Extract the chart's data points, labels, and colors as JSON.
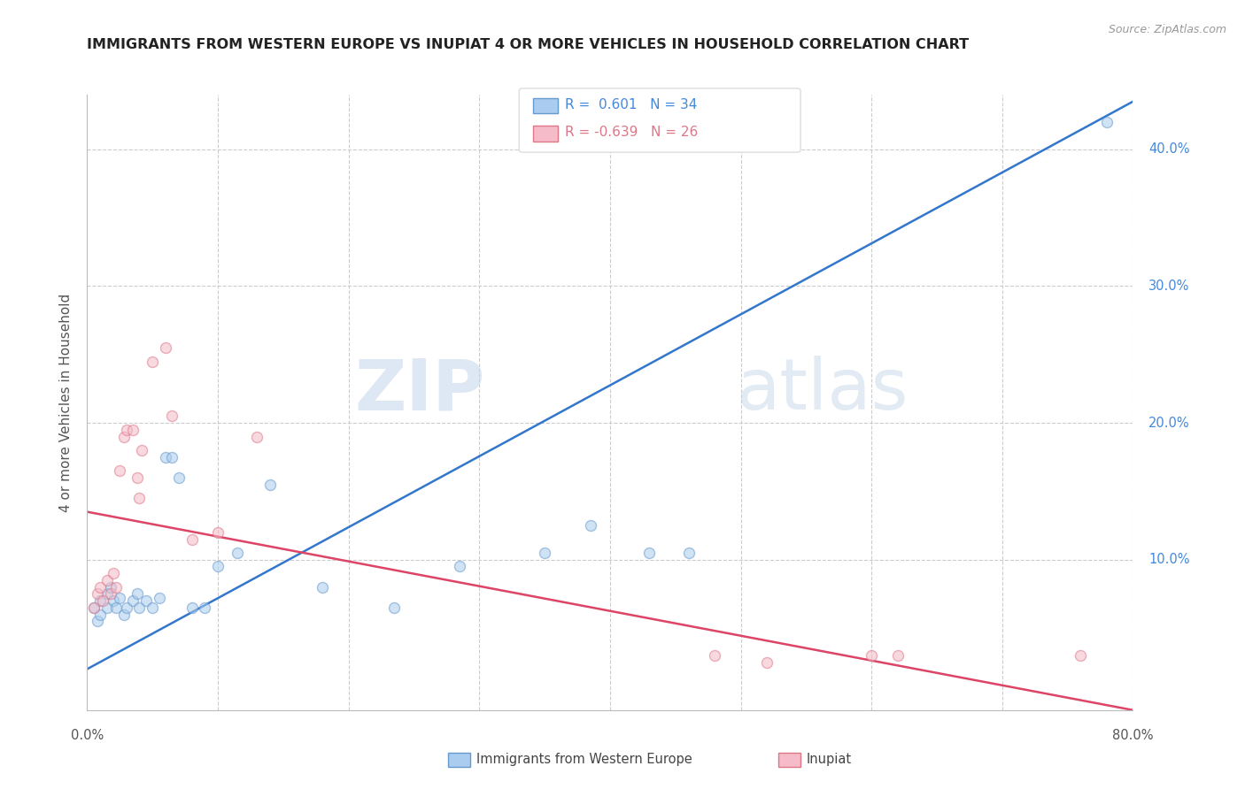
{
  "title": "IMMIGRANTS FROM WESTERN EUROPE VS INUPIAT 4 OR MORE VEHICLES IN HOUSEHOLD CORRELATION CHART",
  "source": "Source: ZipAtlas.com",
  "ylabel": "4 or more Vehicles in Household",
  "watermark_zip": "ZIP",
  "watermark_atlas": "atlas",
  "legend_blue_label": "Immigrants from Western Europe",
  "legend_pink_label": "Inupiat",
  "R_blue": 0.601,
  "N_blue": 34,
  "R_pink": -0.639,
  "N_pink": 26,
  "xlim": [
    0.0,
    0.8
  ],
  "ylim": [
    -0.01,
    0.44
  ],
  "xticks": [
    0.0,
    0.1,
    0.2,
    0.3,
    0.4,
    0.5,
    0.6,
    0.7,
    0.8
  ],
  "yticks": [
    0.0,
    0.1,
    0.2,
    0.3,
    0.4
  ],
  "blue_scatter": [
    [
      0.005,
      0.065
    ],
    [
      0.008,
      0.055
    ],
    [
      0.01,
      0.07
    ],
    [
      0.01,
      0.06
    ],
    [
      0.015,
      0.075
    ],
    [
      0.015,
      0.065
    ],
    [
      0.018,
      0.08
    ],
    [
      0.02,
      0.07
    ],
    [
      0.022,
      0.065
    ],
    [
      0.025,
      0.072
    ],
    [
      0.028,
      0.06
    ],
    [
      0.03,
      0.065
    ],
    [
      0.035,
      0.07
    ],
    [
      0.038,
      0.075
    ],
    [
      0.04,
      0.065
    ],
    [
      0.045,
      0.07
    ],
    [
      0.05,
      0.065
    ],
    [
      0.055,
      0.072
    ],
    [
      0.06,
      0.175
    ],
    [
      0.065,
      0.175
    ],
    [
      0.07,
      0.16
    ],
    [
      0.08,
      0.065
    ],
    [
      0.09,
      0.065
    ],
    [
      0.1,
      0.095
    ],
    [
      0.115,
      0.105
    ],
    [
      0.14,
      0.155
    ],
    [
      0.18,
      0.08
    ],
    [
      0.235,
      0.065
    ],
    [
      0.285,
      0.095
    ],
    [
      0.35,
      0.105
    ],
    [
      0.385,
      0.125
    ],
    [
      0.43,
      0.105
    ],
    [
      0.78,
      0.42
    ],
    [
      0.46,
      0.105
    ]
  ],
  "pink_scatter": [
    [
      0.005,
      0.065
    ],
    [
      0.008,
      0.075
    ],
    [
      0.01,
      0.08
    ],
    [
      0.012,
      0.07
    ],
    [
      0.015,
      0.085
    ],
    [
      0.018,
      0.075
    ],
    [
      0.02,
      0.09
    ],
    [
      0.022,
      0.08
    ],
    [
      0.025,
      0.165
    ],
    [
      0.028,
      0.19
    ],
    [
      0.03,
      0.195
    ],
    [
      0.035,
      0.195
    ],
    [
      0.038,
      0.16
    ],
    [
      0.04,
      0.145
    ],
    [
      0.042,
      0.18
    ],
    [
      0.05,
      0.245
    ],
    [
      0.06,
      0.255
    ],
    [
      0.065,
      0.205
    ],
    [
      0.08,
      0.115
    ],
    [
      0.1,
      0.12
    ],
    [
      0.13,
      0.19
    ],
    [
      0.48,
      0.03
    ],
    [
      0.52,
      0.025
    ],
    [
      0.6,
      0.03
    ],
    [
      0.62,
      0.03
    ],
    [
      0.76,
      0.03
    ]
  ],
  "blue_line_x": [
    0.0,
    0.8
  ],
  "blue_line_y": [
    0.02,
    0.435
  ],
  "pink_line_x": [
    0.0,
    0.8
  ],
  "pink_line_y": [
    0.135,
    -0.01
  ],
  "scatter_alpha": 0.55,
  "scatter_size": 75,
  "blue_color": "#aaccee",
  "blue_edge_color": "#6699cc",
  "pink_color": "#f5bbc8",
  "pink_edge_color": "#dd7788",
  "blue_line_color": "#3377cc",
  "pink_line_color": "#dd4466",
  "grid_color": "#cccccc",
  "background_color": "#ffffff",
  "ytick_color": "#4488dd",
  "ylabel_color": "#555555",
  "title_color": "#222222"
}
